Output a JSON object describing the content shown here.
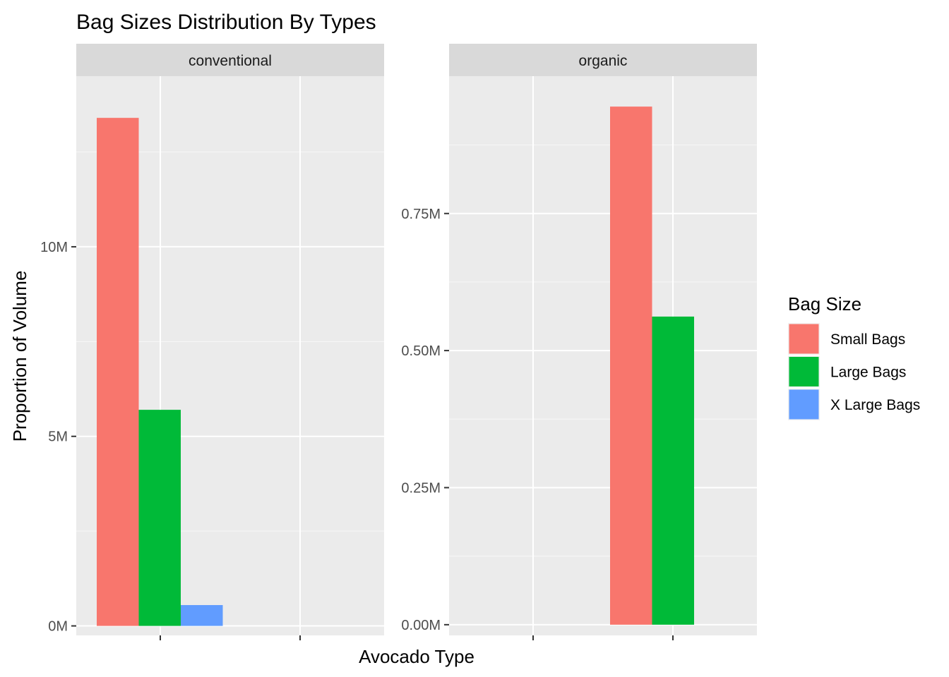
{
  "chart_data": {
    "type": "bar",
    "title": "Bag Sizes Distribution By Types",
    "xlabel": "Avocado Type",
    "ylabel": "Proportion of Volume",
    "legend": {
      "title": "Bag Size",
      "placement": "right",
      "entries": [
        "Small Bags",
        "Large Bags",
        "X Large Bags"
      ]
    },
    "colors": {
      "Small Bags": "#F8766D",
      "Large Bags": "#00BA38",
      "X Large Bags": "#619CFF",
      "panel_bg": "#EBEBEB",
      "strip_bg": "#D9D9D9",
      "grid": "#FFFFFF"
    },
    "grid": true,
    "facets": [
      {
        "strip": "conventional",
        "ylim": [
          -0.25,
          14.5
        ],
        "yticks": [
          0,
          5,
          10
        ],
        "ytick_labels": [
          "0M",
          "5M",
          "10M"
        ],
        "unit": "M",
        "series": [
          {
            "name": "Small Bags",
            "value": 13.4
          },
          {
            "name": "Large Bags",
            "value": 5.7
          },
          {
            "name": "X Large Bags",
            "value": 0.55
          }
        ]
      },
      {
        "strip": "organic",
        "ylim": [
          -0.0195,
          1.0005
        ],
        "yticks": [
          0.0,
          0.25,
          0.5,
          0.75
        ],
        "ytick_labels": [
          "0.00M",
          "0.25M",
          "0.50M",
          "0.75M"
        ],
        "unit": "M",
        "series": [
          {
            "name": "Small Bags",
            "value": 0.945
          },
          {
            "name": "Large Bags",
            "value": 0.562
          }
        ]
      }
    ]
  }
}
